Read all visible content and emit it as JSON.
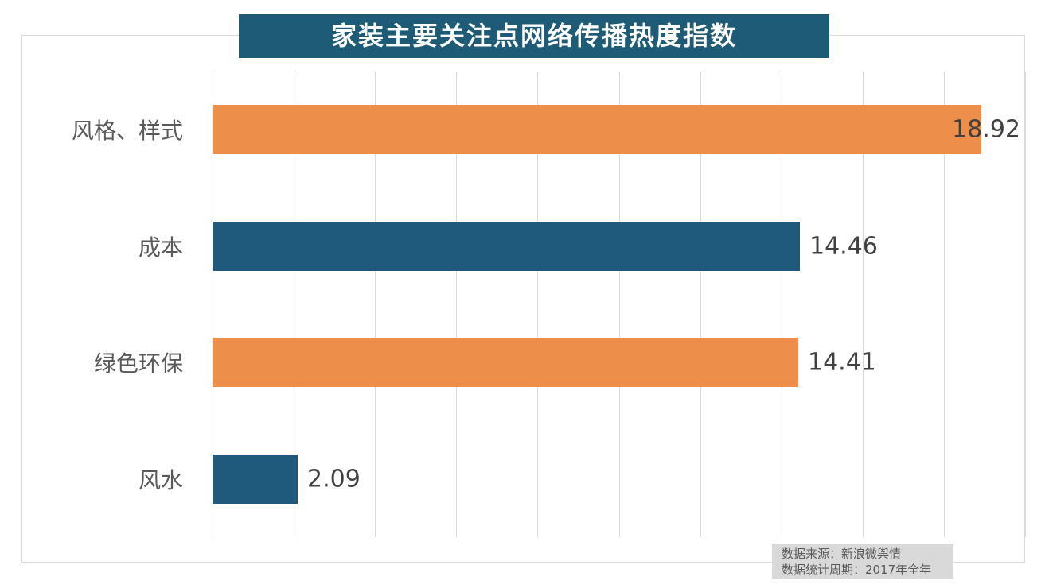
{
  "title": "家装主要关注点网络传播热度指数",
  "chart_data": {
    "type": "bar",
    "orientation": "horizontal",
    "title": "家装主要关注点网络传播热度指数",
    "categories": [
      "风格、样式",
      "成本",
      "绿色环保",
      "风水"
    ],
    "values": [
      18.92,
      14.46,
      14.41,
      2.09
    ],
    "value_labels": [
      "18.92",
      "14.46",
      "14.41",
      "2.09"
    ],
    "bar_colors": [
      "#ED8E4A",
      "#1F5A7D",
      "#ED8E4A",
      "#1F5A7D"
    ],
    "xlim": [
      0,
      20
    ],
    "gridline_step": 2,
    "grid": "vertical-only",
    "legend": "none",
    "axis_tick_labels": "none"
  },
  "footer": {
    "source_line": "数据来源：新浪微舆情",
    "period_line": "数据统计周期：2017年全年"
  },
  "colors": {
    "orange_bar": "#ED8E4A",
    "blue_bar": "#1F5A7D",
    "title_background": "#1E5B76",
    "gridline": "#D9D9D9",
    "category_text": "#595959",
    "value_text": "#404040",
    "footer_background": "#D9D9D9",
    "footer_text": "#595959"
  }
}
